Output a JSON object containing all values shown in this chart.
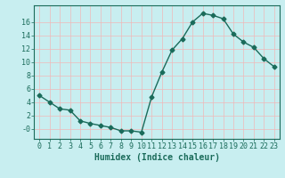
{
  "x": [
    0,
    1,
    2,
    3,
    4,
    5,
    6,
    7,
    8,
    9,
    10,
    11,
    12,
    13,
    14,
    15,
    16,
    17,
    18,
    19,
    20,
    21,
    22,
    23
  ],
  "y": [
    5.0,
    4.0,
    3.0,
    2.8,
    1.2,
    0.8,
    0.5,
    0.2,
    -0.3,
    -0.3,
    -0.5,
    4.8,
    8.5,
    11.8,
    13.5,
    16.0,
    17.3,
    17.0,
    16.5,
    14.2,
    13.0,
    12.2,
    10.5,
    9.3
  ],
  "line_color": "#1a6b5a",
  "marker": "D",
  "markersize": 2.5,
  "bg_color": "#c8eef0",
  "grid_color": "#e8f8f8",
  "xlabel": "Humidex (Indice chaleur)",
  "xlabel_fontsize": 7,
  "tick_fontsize": 6,
  "ylim": [
    -1.5,
    18.5
  ],
  "yticks": [
    0,
    2,
    4,
    6,
    8,
    10,
    12,
    14,
    16
  ],
  "ytick_labels": [
    "-0",
    "2",
    "4",
    "6",
    "8",
    "10",
    "12",
    "14",
    "16"
  ],
  "xticks": [
    0,
    1,
    2,
    3,
    4,
    5,
    6,
    7,
    8,
    9,
    10,
    11,
    12,
    13,
    14,
    15,
    16,
    17,
    18,
    19,
    20,
    21,
    22,
    23
  ]
}
